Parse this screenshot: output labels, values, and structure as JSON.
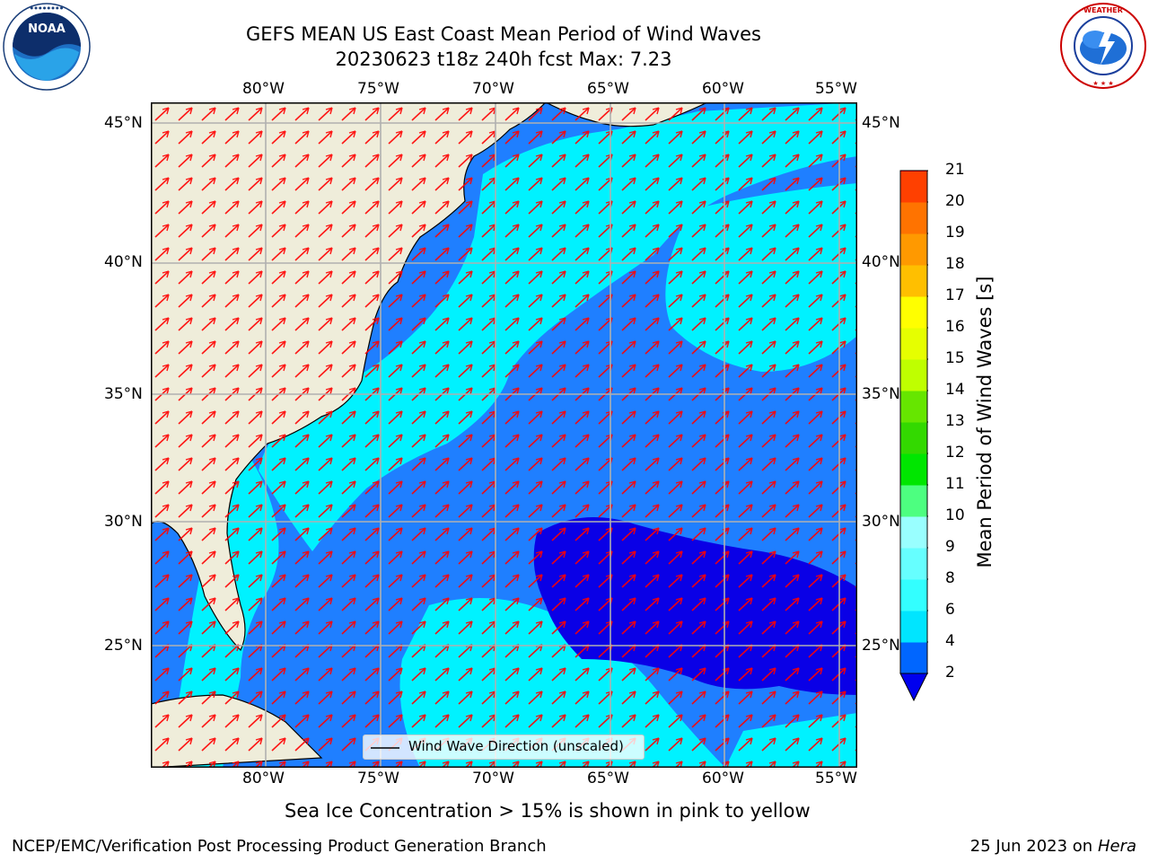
{
  "header": {
    "title_line1": "GEFS MEAN US East Coast Mean Period of Wind Waves",
    "title_line2": "20230623 t18z 240h fcst   Max: 7.23"
  },
  "logos": {
    "left": {
      "name": "noaa-logo",
      "text": "NOAA",
      "ring_text": "NATIONAL OCEANIC AND ATMOSPHERIC ADMINISTRATION · U.S. DEPARTMENT OF COMMERCE"
    },
    "right": {
      "name": "nws-logo",
      "ring_text": "NATIONAL WEATHER SERVICE"
    }
  },
  "map": {
    "lon_labels": [
      "80°W",
      "75°W",
      "70°W",
      "65°W",
      "60°W",
      "55°W"
    ],
    "lat_labels": [
      "45°N",
      "40°N",
      "35°N",
      "30°N",
      "25°N"
    ],
    "legend_label": "Wind Wave Direction (unscaled)",
    "colors": {
      "land": "#efedda",
      "deep_blue": "#0a00e6",
      "mid_blue": "#1f7fff",
      "cyan": "#00f2ff",
      "arrow": "#ff0000",
      "grid": "#b0b0b0"
    }
  },
  "colorbar": {
    "label": "Mean Period of Wind Waves [s]",
    "ticks": [
      "2",
      "4",
      "6",
      "8",
      "9",
      "10",
      "11",
      "12",
      "13",
      "14",
      "15",
      "16",
      "17",
      "18",
      "19",
      "20",
      "21"
    ],
    "colors": [
      "#0066ff",
      "#00e5ff",
      "#33ffff",
      "#66ffff",
      "#99ffff",
      "#4dff80",
      "#00e600",
      "#33d900",
      "#66e600",
      "#bfff00",
      "#e6ff00",
      "#ffff00",
      "#ffbf00",
      "#ff9900",
      "#ff7300",
      "#ff4000",
      "#ff0000"
    ],
    "extend_color": "#0000ee"
  },
  "footer": {
    "ice_note": "Sea Ice Concentration > 15% is shown in pink to yellow",
    "producer": "NCEP/EMC/Verification Post Processing Product Generation Branch",
    "date": "25 Jun 2023 on",
    "machine": "Hera"
  }
}
